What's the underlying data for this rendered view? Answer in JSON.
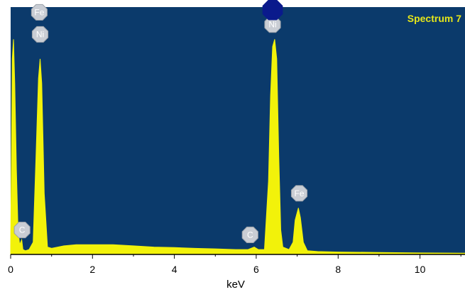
{
  "colors": {
    "plot_background": "#0b3a6b",
    "spectrum": "#f2f20a",
    "title": "#e6e619",
    "marker_fill": "#c9cdd4",
    "marker_text": "#ffffff",
    "highlight_marker": "#0a1a8c"
  },
  "chart_data": {
    "type": "area",
    "title": "Spectrum 7",
    "xlabel": "keV",
    "ylabel": "",
    "xlim": [
      0,
      11.1
    ],
    "ylim": [
      0,
      100
    ],
    "x_ticks": [
      0,
      2,
      4,
      6,
      8,
      10
    ],
    "x_tick_labels": [
      "0",
      "2",
      "4",
      "6",
      "8",
      "10"
    ],
    "grid": false,
    "series": [
      {
        "points": [
          [
            0.0,
            3
          ],
          [
            0.04,
            80
          ],
          [
            0.07,
            88
          ],
          [
            0.1,
            70
          ],
          [
            0.14,
            35
          ],
          [
            0.18,
            10
          ],
          [
            0.22,
            4
          ],
          [
            0.27,
            6
          ],
          [
            0.3,
            2
          ],
          [
            0.36,
            1.5
          ],
          [
            0.45,
            2
          ],
          [
            0.55,
            5
          ],
          [
            0.62,
            40
          ],
          [
            0.68,
            72
          ],
          [
            0.72,
            80
          ],
          [
            0.76,
            70
          ],
          [
            0.82,
            25
          ],
          [
            0.9,
            3
          ],
          [
            1.0,
            2.5
          ],
          [
            1.3,
            3.5
          ],
          [
            1.6,
            4
          ],
          [
            2.0,
            4
          ],
          [
            2.5,
            4
          ],
          [
            3.0,
            3.5
          ],
          [
            3.5,
            3
          ],
          [
            4.0,
            2.8
          ],
          [
            4.5,
            2.5
          ],
          [
            5.0,
            2.3
          ],
          [
            5.5,
            2
          ],
          [
            5.8,
            2
          ],
          [
            5.95,
            3
          ],
          [
            6.05,
            2
          ],
          [
            6.2,
            2
          ],
          [
            6.3,
            30
          ],
          [
            6.35,
            65
          ],
          [
            6.4,
            85
          ],
          [
            6.45,
            88
          ],
          [
            6.5,
            80
          ],
          [
            6.55,
            40
          ],
          [
            6.6,
            10
          ],
          [
            6.65,
            3
          ],
          [
            6.8,
            2
          ],
          [
            6.9,
            5
          ],
          [
            6.95,
            14
          ],
          [
            7.03,
            19
          ],
          [
            7.08,
            15
          ],
          [
            7.15,
            5
          ],
          [
            7.25,
            1.5
          ],
          [
            7.5,
            1.2
          ],
          [
            8.0,
            1
          ],
          [
            9.0,
            0.8
          ],
          [
            10.0,
            0.6
          ],
          [
            11.1,
            0.5
          ]
        ]
      }
    ],
    "annotations": [
      {
        "label": "Fe",
        "x": 0.7,
        "y": 99,
        "style": "normal"
      },
      {
        "label": "Ni",
        "x": 0.72,
        "y": 90,
        "style": "normal"
      },
      {
        "label": "Ni",
        "x": 6.4,
        "y": 94,
        "style": "normal"
      },
      {
        "label": "",
        "x": 6.4,
        "y": 100,
        "style": "highlight"
      },
      {
        "label": "Fe",
        "x": 7.05,
        "y": 25,
        "style": "normal"
      },
      {
        "label": "C",
        "x": 0.28,
        "y": 10,
        "style": "normal"
      },
      {
        "label": "C",
        "x": 5.85,
        "y": 8,
        "style": "normal"
      }
    ]
  }
}
